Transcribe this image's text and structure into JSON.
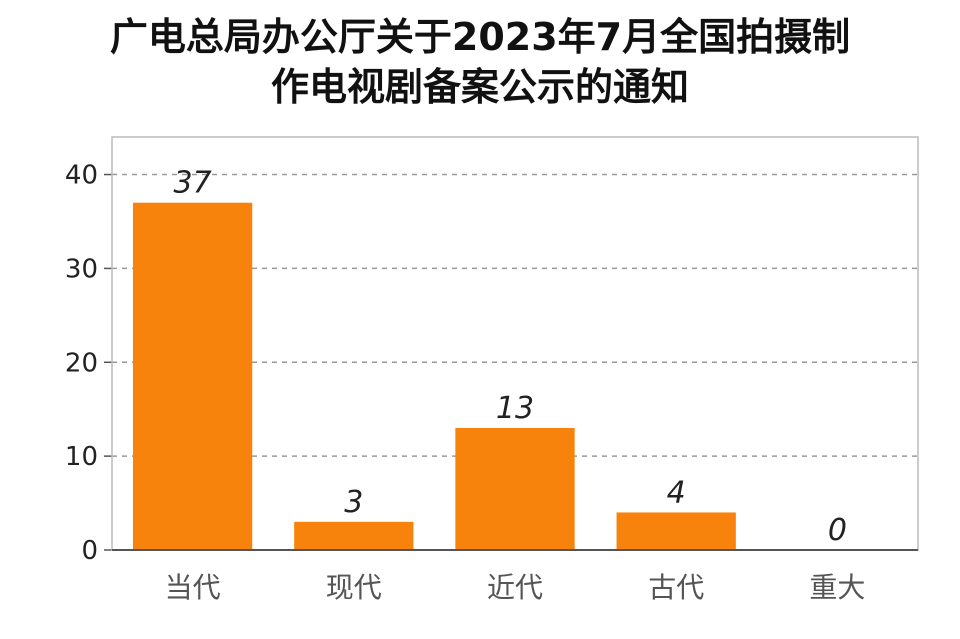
{
  "title_lines": [
    "广电总局办公厅关于2023年7月全国拍摄制",
    "作电视剧备案公示的通知"
  ],
  "chart_data": {
    "type": "bar",
    "title": "广电总局办公厅关于2023年7月全国拍摄制作电视剧备案公示的通知",
    "categories": [
      "当代",
      "现代",
      "近代",
      "古代",
      "重大"
    ],
    "values": [
      37,
      3,
      13,
      4,
      0
    ],
    "ylim": [
      0,
      44
    ],
    "yticks": [
      0,
      10,
      20,
      30,
      40
    ],
    "grid": true,
    "bar_color": "#f7830d"
  }
}
